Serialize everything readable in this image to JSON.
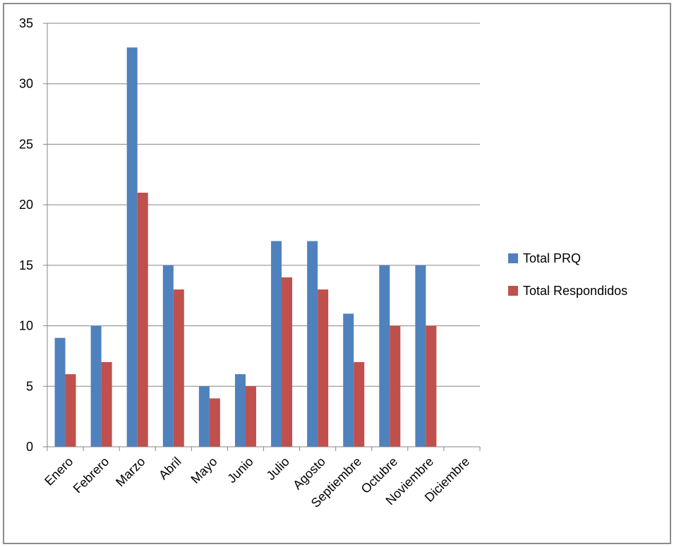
{
  "chart_data": {
    "type": "bar",
    "categories": [
      "Enero",
      "Febrero",
      "Marzo",
      "Abril",
      "Mayo",
      "Junio",
      "Julio",
      "Agosto",
      "Septiembre",
      "Octubre",
      "Noviembre",
      "Diciembre"
    ],
    "series": [
      {
        "name": "Total PRQ",
        "color": "#4F81BD",
        "values": [
          9,
          10,
          33,
          15,
          5,
          6,
          17,
          17,
          11,
          15,
          15,
          0
        ]
      },
      {
        "name": "Total Respondidos",
        "color": "#C0504D",
        "values": [
          6,
          7,
          21,
          13,
          4,
          5,
          14,
          13,
          7,
          10,
          10,
          0
        ]
      }
    ],
    "ylim": [
      0,
      35
    ],
    "yticks": [
      0,
      5,
      10,
      15,
      20,
      25,
      30,
      35
    ],
    "grid": true,
    "legend": "right"
  }
}
